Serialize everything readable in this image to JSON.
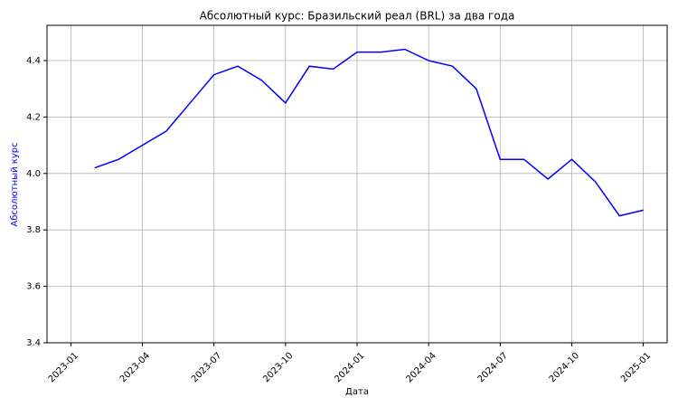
{
  "chart_data": {
    "type": "line",
    "title": "Абсолютный курс: Бразильский реал (BRL) за два года",
    "x_label": "Дата",
    "y_label": "Абсолютный курс",
    "x": [
      "2023-02",
      "2023-03",
      "2023-04",
      "2023-05",
      "2023-06",
      "2023-07",
      "2023-08",
      "2023-09",
      "2023-10",
      "2023-11",
      "2023-12",
      "2024-01",
      "2024-02",
      "2024-03",
      "2024-04",
      "2024-05",
      "2024-06",
      "2024-07",
      "2024-08",
      "2024-09",
      "2024-10",
      "2024-11",
      "2024-12",
      "2025-01"
    ],
    "series": [
      {
        "name": "BRL",
        "color": "#0000ff",
        "values": [
          4.02,
          4.05,
          4.1,
          4.15,
          4.25,
          4.35,
          4.38,
          4.33,
          4.25,
          4.38,
          4.37,
          4.43,
          4.43,
          4.44,
          4.4,
          4.38,
          4.3,
          4.05,
          4.05,
          3.98,
          4.05,
          3.97,
          3.85,
          3.87
        ]
      }
    ],
    "xlim": [
      "2022-12",
      "2025-02"
    ],
    "xticks": [
      "2023-01",
      "2023-04",
      "2023-07",
      "2023-10",
      "2024-01",
      "2024-04",
      "2024-07",
      "2024-10",
      "2025-01"
    ],
    "ylim": [
      3.4,
      4.525
    ],
    "yticks": [
      3.4,
      3.6,
      3.8,
      {
        "value": 4,
        "label": "4.0"
      },
      4.2,
      4.4
    ],
    "grid": true,
    "y_label_color": "#0000ff"
  }
}
